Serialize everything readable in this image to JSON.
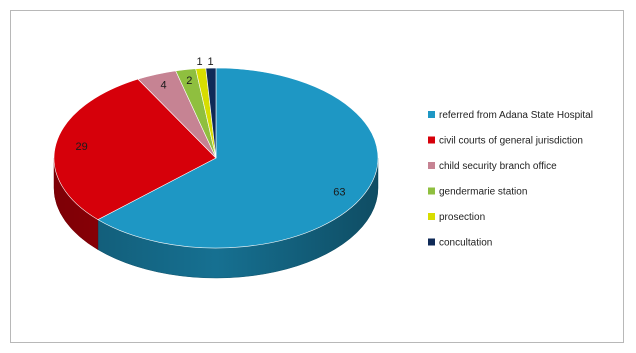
{
  "chart_data": {
    "type": "pie",
    "title": "",
    "categories": [
      "referred from Adana State Hospital",
      "civil courts of general jurisdiction",
      "child security branch office",
      "gendermarie station",
      "prosection",
      "concultation"
    ],
    "values": [
      63,
      29,
      4,
      2,
      1,
      1
    ],
    "colors": [
      "#1e97c4",
      "#d6000a",
      "#c68393",
      "#8fbf3f",
      "#d7dd00",
      "#0f2a57"
    ],
    "legend_position": "right"
  }
}
